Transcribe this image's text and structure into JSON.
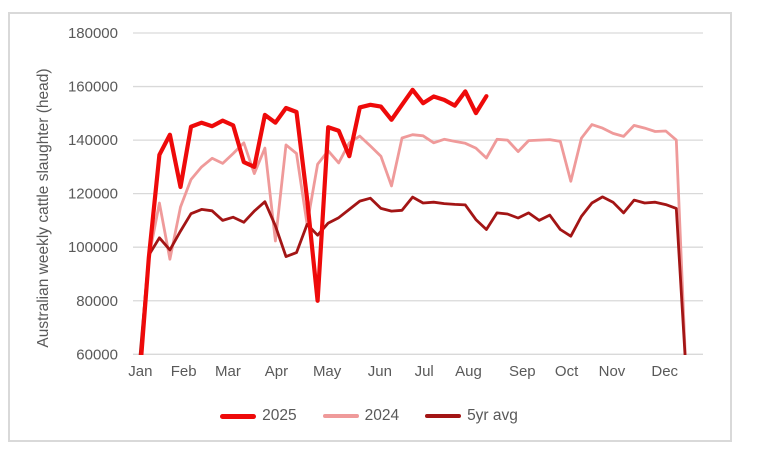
{
  "chart_data": {
    "type": "line",
    "ylabel": "Australian weekly cattle slaughter (head)",
    "ylim": [
      60000,
      180000
    ],
    "y_ticks": [
      60000,
      80000,
      100000,
      120000,
      140000,
      160000,
      180000
    ],
    "x_months": [
      "Jan",
      "Feb",
      "Mar",
      "Apr",
      "May",
      "Jun",
      "Jul",
      "Aug",
      "Sep",
      "Oct",
      "Nov",
      "Dec"
    ],
    "x_unit": "week",
    "grid": "horizontal",
    "grid_color": "#d9d9d9",
    "axis_text_color": "#595959",
    "legend_position": "bottom",
    "series": [
      {
        "name": "2025",
        "color": "#ee0a0a",
        "stroke_width": 4.2,
        "values": [
          45000,
          96000,
          134500,
          142000,
          122500,
          145000,
          146500,
          145200,
          147300,
          145500,
          131800,
          130000,
          149400,
          146500,
          152000,
          150500,
          118000,
          80000,
          144800,
          143500,
          134000,
          152200,
          153200,
          152500,
          147600,
          153200,
          158800,
          153800,
          156300,
          155000,
          152900,
          158200,
          150100,
          156400
        ]
      },
      {
        "name": "2024",
        "color": "#ef9a9a",
        "stroke_width": 2.8,
        "values": [
          50000,
          96000,
          116500,
          95500,
          115000,
          125300,
          130000,
          133200,
          131300,
          135000,
          139000,
          127500,
          137000,
          102300,
          138200,
          135000,
          108500,
          131000,
          136000,
          131500,
          139000,
          141500,
          137800,
          134000,
          122900,
          140800,
          142000,
          141600,
          139000,
          140300,
          139500,
          138800,
          137000,
          133300,
          140300,
          140000,
          135700,
          139800,
          140000,
          140200,
          139500,
          124600,
          140700,
          145800,
          144500,
          142500,
          141400,
          145500,
          144500,
          143200,
          143400,
          140000,
          45000
        ]
      },
      {
        "name": "5yr avg",
        "color": "#a31515",
        "stroke_width": 2.8,
        "values": [
          52000,
          97000,
          103500,
          99000,
          106000,
          112500,
          114100,
          113600,
          110000,
          111200,
          109300,
          113500,
          117000,
          108000,
          96500,
          98000,
          108500,
          104500,
          109000,
          111000,
          114100,
          117200,
          118300,
          114500,
          113500,
          113800,
          118700,
          116500,
          116800,
          116300,
          116000,
          115800,
          110300,
          106600,
          112800,
          112400,
          110900,
          112800,
          110000,
          112000,
          106600,
          104100,
          111500,
          116500,
          118800,
          116800,
          112800,
          117600,
          116500,
          116800,
          115900,
          114500,
          48000
        ]
      }
    ]
  }
}
